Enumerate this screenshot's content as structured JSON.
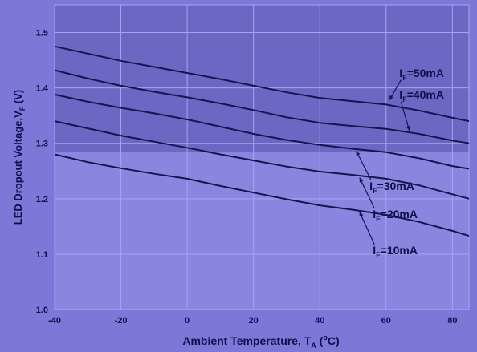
{
  "colors": {
    "background": "#7b78d8",
    "plot_upper": "#6b68c4",
    "plot_lower": "#8a86e0",
    "grid": "#a8a4ee",
    "line": "#15154f",
    "text": "#0f0f4a"
  },
  "chart_data": {
    "type": "line",
    "title": "",
    "xlabel_main": "Ambient Temperature, T",
    "xlabel_sub": "A",
    "xlabel_unit_open": " (",
    "xlabel_unit_sup": "o",
    "xlabel_unit_close": "C)",
    "ylabel_main": "LED Dropout Voltage,V",
    "ylabel_sub": "F",
    "ylabel_unit": " (V)",
    "xlim": [
      -40,
      85
    ],
    "ylim": [
      1.0,
      1.55
    ],
    "xticks": [
      -40,
      -20,
      0,
      20,
      40,
      60,
      80
    ],
    "xtick_labels": [
      "-40",
      "-20",
      "0",
      "20",
      "40",
      "60",
      "80"
    ],
    "yticks": [
      1.0,
      1.1,
      1.2,
      1.3,
      1.4,
      1.5
    ],
    "ytick_labels": [
      "1.0",
      "1.1",
      "1.2",
      "1.3",
      "1.4",
      "1.5"
    ],
    "grid": true,
    "x": [
      -40,
      -30,
      -20,
      -10,
      0,
      10,
      20,
      30,
      40,
      50,
      60,
      70,
      80,
      85
    ],
    "series": [
      {
        "name": "I_F=50mA",
        "values": [
          1.475,
          1.462,
          1.449,
          1.438,
          1.427,
          1.416,
          1.404,
          1.392,
          1.382,
          1.376,
          1.37,
          1.359,
          1.346,
          1.34
        ]
      },
      {
        "name": "I_F=40mA",
        "values": [
          1.432,
          1.417,
          1.404,
          1.393,
          1.383,
          1.372,
          1.36,
          1.347,
          1.337,
          1.331,
          1.326,
          1.317,
          1.305,
          1.3
        ]
      },
      {
        "name": "I_F=30mA",
        "values": [
          1.388,
          1.375,
          1.364,
          1.354,
          1.343,
          1.33,
          1.317,
          1.306,
          1.297,
          1.29,
          1.284,
          1.273,
          1.259,
          1.254
        ]
      },
      {
        "name": "I_F=20mA",
        "values": [
          1.34,
          1.327,
          1.314,
          1.303,
          1.292,
          1.28,
          1.269,
          1.258,
          1.249,
          1.243,
          1.236,
          1.224,
          1.208,
          1.2
        ]
      },
      {
        "name": "I_F=10mA",
        "values": [
          1.28,
          1.266,
          1.255,
          1.245,
          1.236,
          1.223,
          1.211,
          1.199,
          1.188,
          1.18,
          1.171,
          1.158,
          1.142,
          1.133
        ]
      }
    ],
    "labels": [
      {
        "sym": "I",
        "sub": "F",
        "rest": "=50mA",
        "x": 64,
        "y": 1.42,
        "ax": 61,
        "ay": 1.378
      },
      {
        "sym": "I",
        "sub": "F",
        "rest": "=40mA",
        "x": 64,
        "y": 1.381,
        "ax": 67,
        "ay": 1.323
      },
      {
        "sym": "I",
        "sub": "F",
        "rest": "=30mA",
        "x": 55,
        "y": 1.216,
        "ax": 51,
        "ay": 1.286
      },
      {
        "sym": "I",
        "sub": "F",
        "rest": "=20mA",
        "x": 56,
        "y": 1.165,
        "ax": 52,
        "ay": 1.238
      },
      {
        "sym": "I",
        "sub": "F",
        "rest": "=10mA",
        "x": 56,
        "y": 1.1,
        "ax": 52,
        "ay": 1.176
      }
    ]
  }
}
